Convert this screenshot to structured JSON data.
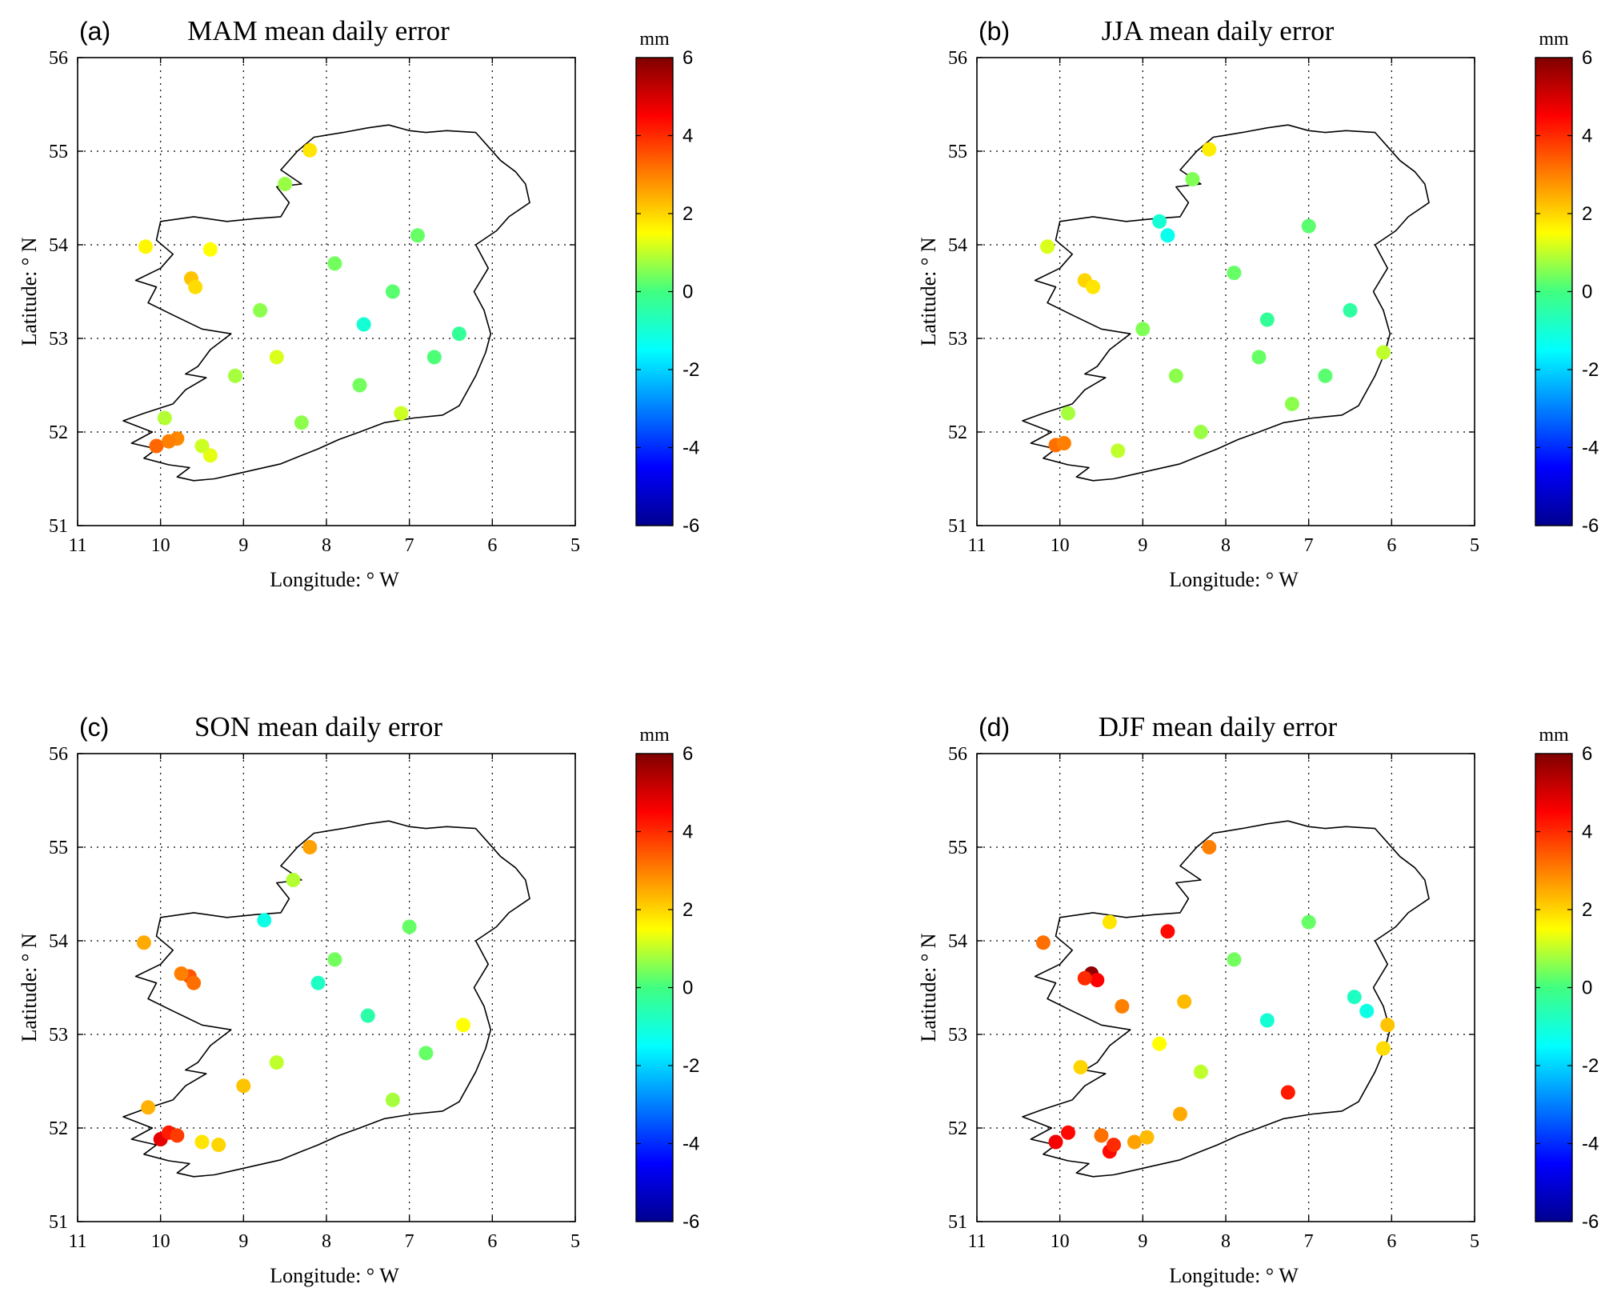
{
  "chart_data": [
    {
      "type": "scatter",
      "panel_label": "(a)",
      "title": "MAM mean daily error",
      "xlabel": "Longitude: ° W",
      "ylabel": "Latitude: ° N",
      "xlim": [
        11,
        5
      ],
      "ylim": [
        51,
        56
      ],
      "x_ticks": [
        "11",
        "10",
        "9",
        "8",
        "7",
        "6",
        "5"
      ],
      "y_ticks": [
        "51",
        "52",
        "53",
        "54",
        "55",
        "56"
      ],
      "grid": true,
      "colorbar": {
        "unit": "mm",
        "range": [
          -6,
          6
        ],
        "ticks": [
          "6",
          "4",
          "2",
          "0",
          "-2",
          "-4",
          "-6"
        ]
      },
      "x_key": "lon_w",
      "y_key": "lat_n",
      "value_key": "error_mm",
      "points": [
        {
          "lon_w": 10.05,
          "lat_n": 51.85,
          "error_mm": 3.3
        },
        {
          "lon_w": 9.8,
          "lat_n": 51.93,
          "error_mm": 2.9
        },
        {
          "lon_w": 9.9,
          "lat_n": 51.9,
          "error_mm": 3.0
        },
        {
          "lon_w": 9.63,
          "lat_n": 53.64,
          "error_mm": 2.2
        },
        {
          "lon_w": 9.58,
          "lat_n": 53.55,
          "error_mm": 1.9
        },
        {
          "lon_w": 8.2,
          "lat_n": 55.01,
          "error_mm": 1.8
        },
        {
          "lon_w": 10.18,
          "lat_n": 53.98,
          "error_mm": 1.6
        },
        {
          "lon_w": 9.4,
          "lat_n": 53.95,
          "error_mm": 1.5
        },
        {
          "lon_w": 7.55,
          "lat_n": 53.15,
          "error_mm": -1.0
        },
        {
          "lon_w": 6.4,
          "lat_n": 53.05,
          "error_mm": -0.3
        },
        {
          "lon_w": 9.4,
          "lat_n": 51.75,
          "error_mm": 1.3
        },
        {
          "lon_w": 9.5,
          "lat_n": 51.85,
          "error_mm": 1.1
        },
        {
          "lon_w": 8.6,
          "lat_n": 52.8,
          "error_mm": 1.2
        },
        {
          "lon_w": 7.1,
          "lat_n": 52.2,
          "error_mm": 1.1
        },
        {
          "lon_w": 9.1,
          "lat_n": 52.6,
          "error_mm": 0.8
        },
        {
          "lon_w": 8.8,
          "lat_n": 53.3,
          "error_mm": 0.6
        },
        {
          "lon_w": 7.9,
          "lat_n": 53.8,
          "error_mm": 0.4
        },
        {
          "lon_w": 7.2,
          "lat_n": 53.5,
          "error_mm": 0.2
        },
        {
          "lon_w": 6.7,
          "lat_n": 52.8,
          "error_mm": 0.1
        },
        {
          "lon_w": 6.9,
          "lat_n": 54.1,
          "error_mm": 0.3
        },
        {
          "lon_w": 8.5,
          "lat_n": 54.65,
          "error_mm": 0.7
        },
        {
          "lon_w": 9.95,
          "lat_n": 52.15,
          "error_mm": 0.9
        },
        {
          "lon_w": 8.3,
          "lat_n": 52.1,
          "error_mm": 0.6
        },
        {
          "lon_w": 7.6,
          "lat_n": 52.5,
          "error_mm": 0.4
        }
      ]
    },
    {
      "type": "scatter",
      "panel_label": "(b)",
      "title": "JJA mean daily error",
      "xlabel": "Longitude: ° W",
      "ylabel": "Latitude: ° N",
      "xlim": [
        11,
        5
      ],
      "ylim": [
        51,
        56
      ],
      "x_ticks": [
        "11",
        "10",
        "9",
        "8",
        "7",
        "6",
        "5"
      ],
      "y_ticks": [
        "51",
        "52",
        "53",
        "54",
        "55",
        "56"
      ],
      "grid": true,
      "colorbar": {
        "unit": "mm",
        "range": [
          -6,
          6
        ],
        "ticks": [
          "6",
          "4",
          "2",
          "0",
          "-2",
          "-4",
          "-6"
        ]
      },
      "x_key": "lon_w",
      "y_key": "lat_n",
      "value_key": "error_mm",
      "points": [
        {
          "lon_w": 10.05,
          "lat_n": 51.86,
          "error_mm": 3.2
        },
        {
          "lon_w": 9.95,
          "lat_n": 51.88,
          "error_mm": 3.0
        },
        {
          "lon_w": 9.7,
          "lat_n": 53.62,
          "error_mm": 2.0
        },
        {
          "lon_w": 9.6,
          "lat_n": 53.55,
          "error_mm": 1.8
        },
        {
          "lon_w": 8.2,
          "lat_n": 55.02,
          "error_mm": 1.7
        },
        {
          "lon_w": 10.15,
          "lat_n": 53.98,
          "error_mm": 1.2
        },
        {
          "lon_w": 8.7,
          "lat_n": 54.1,
          "error_mm": -1.3
        },
        {
          "lon_w": 8.8,
          "lat_n": 54.25,
          "error_mm": -1.0
        },
        {
          "lon_w": 6.1,
          "lat_n": 52.85,
          "error_mm": 1.0
        },
        {
          "lon_w": 9.3,
          "lat_n": 51.8,
          "error_mm": 1.0
        },
        {
          "lon_w": 7.5,
          "lat_n": 53.2,
          "error_mm": -0.3
        },
        {
          "lon_w": 6.5,
          "lat_n": 53.3,
          "error_mm": -0.4
        },
        {
          "lon_w": 8.6,
          "lat_n": 52.6,
          "error_mm": 0.6
        },
        {
          "lon_w": 7.2,
          "lat_n": 52.3,
          "error_mm": 0.6
        },
        {
          "lon_w": 9.0,
          "lat_n": 53.1,
          "error_mm": 0.5
        },
        {
          "lon_w": 7.9,
          "lat_n": 53.7,
          "error_mm": 0.3
        },
        {
          "lon_w": 8.3,
          "lat_n": 52.0,
          "error_mm": 0.7
        },
        {
          "lon_w": 6.8,
          "lat_n": 52.6,
          "error_mm": 0.2
        },
        {
          "lon_w": 7.0,
          "lat_n": 54.2,
          "error_mm": 0.2
        },
        {
          "lon_w": 8.4,
          "lat_n": 54.7,
          "error_mm": 0.5
        },
        {
          "lon_w": 9.9,
          "lat_n": 52.2,
          "error_mm": 0.8
        },
        {
          "lon_w": 7.6,
          "lat_n": 52.8,
          "error_mm": 0.3
        }
      ]
    },
    {
      "type": "scatter",
      "panel_label": "(c)",
      "title": "SON mean daily error",
      "xlabel": "Longitude: ° W",
      "ylabel": "Latitude: ° N",
      "xlim": [
        11,
        5
      ],
      "ylim": [
        51,
        56
      ],
      "x_ticks": [
        "11",
        "10",
        "9",
        "8",
        "7",
        "6",
        "5"
      ],
      "y_ticks": [
        "51",
        "52",
        "53",
        "54",
        "55",
        "56"
      ],
      "grid": true,
      "colorbar": {
        "unit": "mm",
        "range": [
          -6,
          6
        ],
        "ticks": [
          "6",
          "4",
          "2",
          "0",
          "-2",
          "-4",
          "-6"
        ]
      },
      "x_key": "lon_w",
      "y_key": "lat_n",
      "value_key": "error_mm",
      "points": [
        {
          "lon_w": 10.0,
          "lat_n": 51.88,
          "error_mm": 4.8
        },
        {
          "lon_w": 9.9,
          "lat_n": 51.95,
          "error_mm": 4.2
        },
        {
          "lon_w": 9.8,
          "lat_n": 51.92,
          "error_mm": 3.8
        },
        {
          "lon_w": 9.65,
          "lat_n": 53.62,
          "error_mm": 3.5
        },
        {
          "lon_w": 9.6,
          "lat_n": 53.55,
          "error_mm": 3.2
        },
        {
          "lon_w": 9.75,
          "lat_n": 53.65,
          "error_mm": 3.0
        },
        {
          "lon_w": 8.2,
          "lat_n": 55.0,
          "error_mm": 2.6
        },
        {
          "lon_w": 10.2,
          "lat_n": 53.98,
          "error_mm": 2.5
        },
        {
          "lon_w": 10.15,
          "lat_n": 52.22,
          "error_mm": 2.4
        },
        {
          "lon_w": 9.0,
          "lat_n": 52.45,
          "error_mm": 2.2
        },
        {
          "lon_w": 9.3,
          "lat_n": 51.82,
          "error_mm": 2.0
        },
        {
          "lon_w": 9.5,
          "lat_n": 51.85,
          "error_mm": 1.8
        },
        {
          "lon_w": 8.75,
          "lat_n": 54.22,
          "error_mm": -1.2
        },
        {
          "lon_w": 8.1,
          "lat_n": 53.55,
          "error_mm": -0.8
        },
        {
          "lon_w": 7.5,
          "lat_n": 53.2,
          "error_mm": -0.5
        },
        {
          "lon_w": 6.35,
          "lat_n": 53.1,
          "error_mm": 1.5
        },
        {
          "lon_w": 8.6,
          "lat_n": 52.7,
          "error_mm": 1.0
        },
        {
          "lon_w": 7.2,
          "lat_n": 52.3,
          "error_mm": 0.8
        },
        {
          "lon_w": 7.9,
          "lat_n": 53.8,
          "error_mm": 0.4
        },
        {
          "lon_w": 6.8,
          "lat_n": 52.8,
          "error_mm": 0.3
        },
        {
          "lon_w": 8.4,
          "lat_n": 54.65,
          "error_mm": 0.9
        },
        {
          "lon_w": 7.0,
          "lat_n": 54.15,
          "error_mm": 0.3
        }
      ]
    },
    {
      "type": "scatter",
      "panel_label": "(d)",
      "title": "DJF mean daily error",
      "xlabel": "Longitude: ° W",
      "ylabel": "Latitude: ° N",
      "xlim": [
        11,
        5
      ],
      "ylim": [
        51,
        56
      ],
      "x_ticks": [
        "11",
        "10",
        "9",
        "8",
        "7",
        "6",
        "5"
      ],
      "y_ticks": [
        "51",
        "52",
        "53",
        "54",
        "55",
        "56"
      ],
      "grid": true,
      "colorbar": {
        "unit": "mm",
        "range": [
          -6,
          6
        ],
        "ticks": [
          "6",
          "4",
          "2",
          "0",
          "-2",
          "-4",
          "-6"
        ]
      },
      "x_key": "lon_w",
      "y_key": "lat_n",
      "value_key": "error_mm",
      "points": [
        {
          "lon_w": 9.62,
          "lat_n": 53.65,
          "error_mm": 5.8
        },
        {
          "lon_w": 9.55,
          "lat_n": 53.58,
          "error_mm": 4.5
        },
        {
          "lon_w": 9.7,
          "lat_n": 53.6,
          "error_mm": 4.0
        },
        {
          "lon_w": 10.05,
          "lat_n": 51.85,
          "error_mm": 4.6
        },
        {
          "lon_w": 9.9,
          "lat_n": 51.95,
          "error_mm": 4.4
        },
        {
          "lon_w": 9.4,
          "lat_n": 51.75,
          "error_mm": 4.4
        },
        {
          "lon_w": 9.35,
          "lat_n": 51.82,
          "error_mm": 4.0
        },
        {
          "lon_w": 8.7,
          "lat_n": 54.1,
          "error_mm": 4.4
        },
        {
          "lon_w": 7.25,
          "lat_n": 52.38,
          "error_mm": 4.2
        },
        {
          "lon_w": 10.2,
          "lat_n": 53.98,
          "error_mm": 3.2
        },
        {
          "lon_w": 8.2,
          "lat_n": 55.0,
          "error_mm": 3.0
        },
        {
          "lon_w": 9.25,
          "lat_n": 53.3,
          "error_mm": 3.0
        },
        {
          "lon_w": 9.5,
          "lat_n": 51.92,
          "error_mm": 3.2
        },
        {
          "lon_w": 9.1,
          "lat_n": 51.85,
          "error_mm": 2.6
        },
        {
          "lon_w": 8.95,
          "lat_n": 51.9,
          "error_mm": 2.3
        },
        {
          "lon_w": 9.75,
          "lat_n": 52.65,
          "error_mm": 2.0
        },
        {
          "lon_w": 8.5,
          "lat_n": 53.35,
          "error_mm": 2.3
        },
        {
          "lon_w": 8.55,
          "lat_n": 52.15,
          "error_mm": 2.5
        },
        {
          "lon_w": 6.05,
          "lat_n": 53.1,
          "error_mm": 2.2
        },
        {
          "lon_w": 6.1,
          "lat_n": 52.85,
          "error_mm": 1.9
        },
        {
          "lon_w": 9.4,
          "lat_n": 54.2,
          "error_mm": 1.8
        },
        {
          "lon_w": 8.8,
          "lat_n": 52.9,
          "error_mm": 1.5
        },
        {
          "lon_w": 7.5,
          "lat_n": 53.15,
          "error_mm": -1.0
        },
        {
          "lon_w": 6.3,
          "lat_n": 53.25,
          "error_mm": -1.2
        },
        {
          "lon_w": 6.45,
          "lat_n": 53.4,
          "error_mm": -0.8
        },
        {
          "lon_w": 7.9,
          "lat_n": 53.8,
          "error_mm": 0.4
        },
        {
          "lon_w": 7.0,
          "lat_n": 54.2,
          "error_mm": 0.3
        },
        {
          "lon_w": 8.3,
          "lat_n": 52.6,
          "error_mm": 1.0
        }
      ]
    }
  ]
}
